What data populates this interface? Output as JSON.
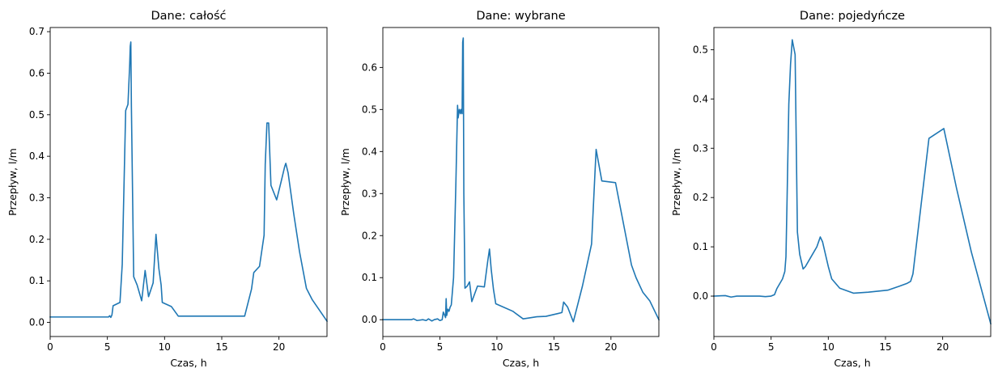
{
  "chart_data": [
    {
      "type": "line",
      "title": "Dane: całość",
      "xlabel": "Czas, h",
      "ylabel": "Przepływ, l/m",
      "xlim": [
        0,
        24.2
      ],
      "ylim": [
        -0.034,
        0.71
      ],
      "xticks": [
        0,
        5,
        10,
        15,
        20
      ],
      "xtick_labels": [
        "0",
        "5",
        "10",
        "15",
        "20"
      ],
      "yticks": [
        0.0,
        0.1,
        0.2,
        0.3,
        0.4,
        0.5,
        0.6,
        0.7
      ],
      "ytick_labels": [
        "0.0",
        "0.1",
        "0.2",
        "0.3",
        "0.4",
        "0.5",
        "0.6",
        "0.7"
      ],
      "color": "#1f77b4",
      "series": [
        {
          "name": "całość",
          "x": [
            0,
            5.1,
            5.2,
            5.3,
            5.4,
            5.5,
            6.1,
            6.3,
            6.6,
            6.8,
            6.95,
            7.0,
            7.05,
            7.1,
            7.3,
            7.6,
            8.0,
            8.3,
            8.6,
            9.0,
            9.25,
            9.5,
            9.7,
            9.8,
            10.6,
            11.2,
            17.0,
            17.6,
            17.8,
            18.3,
            18.7,
            18.8,
            18.95,
            19.1,
            19.3,
            19.8,
            20.2,
            20.5,
            20.6,
            20.8,
            21.3,
            21.8,
            22.4,
            22.9,
            23.4,
            24.2
          ],
          "y": [
            0.013,
            0.013,
            0.016,
            0.012,
            0.018,
            0.04,
            0.048,
            0.14,
            0.51,
            0.525,
            0.62,
            0.665,
            0.675,
            0.52,
            0.11,
            0.09,
            0.052,
            0.125,
            0.062,
            0.095,
            0.212,
            0.13,
            0.09,
            0.048,
            0.038,
            0.015,
            0.015,
            0.08,
            0.12,
            0.135,
            0.21,
            0.38,
            0.48,
            0.48,
            0.33,
            0.295,
            0.34,
            0.375,
            0.383,
            0.36,
            0.26,
            0.17,
            0.082,
            0.055,
            0.035,
            0.003
          ]
        }
      ]
    },
    {
      "type": "line",
      "title": "Dane: wybrane",
      "xlabel": "Czas, h",
      "ylabel": "Przepływ, l/m",
      "xlim": [
        0,
        24.2
      ],
      "ylim": [
        -0.04,
        0.695
      ],
      "xticks": [
        0,
        5,
        10,
        15,
        20
      ],
      "xtick_labels": [
        "0",
        "5",
        "10",
        "15",
        "20"
      ],
      "yticks": [
        0.0,
        0.1,
        0.2,
        0.3,
        0.4,
        0.5,
        0.6
      ],
      "ytick_labels": [
        "0.0",
        "0.1",
        "0.2",
        "0.3",
        "0.4",
        "0.5",
        "0.6"
      ],
      "color": "#1f77b4",
      "series": [
        {
          "name": "wybrane",
          "x": [
            0,
            2.5,
            2.7,
            3.0,
            3.5,
            3.8,
            4.0,
            4.3,
            4.5,
            4.8,
            5.0,
            5.2,
            5.3,
            5.5,
            5.55,
            5.6,
            5.7,
            5.8,
            5.9,
            6.0,
            6.2,
            6.4,
            6.55,
            6.6,
            6.7,
            6.8,
            6.85,
            6.95,
            7.0,
            7.05,
            7.1,
            7.2,
            7.4,
            7.6,
            7.8,
            8.3,
            8.9,
            9.2,
            9.35,
            9.5,
            9.7,
            9.9,
            11.4,
            12.3,
            13.5,
            14.3,
            15.4,
            15.7,
            15.85,
            16.2,
            16.7,
            17.5,
            18.3,
            18.6,
            18.7,
            19.2,
            20.4,
            21.3,
            21.8,
            22.2,
            22.8,
            23.4,
            24.2
          ],
          "y": [
            0.0,
            0.0,
            0.002,
            -0.002,
            0.0,
            -0.002,
            0.002,
            -0.003,
            0.0,
            0.002,
            -0.002,
            0.0,
            0.018,
            0.005,
            0.05,
            0.01,
            0.025,
            0.02,
            0.03,
            0.035,
            0.1,
            0.32,
            0.51,
            0.48,
            0.5,
            0.49,
            0.5,
            0.49,
            0.66,
            0.67,
            0.3,
            0.075,
            0.08,
            0.09,
            0.043,
            0.08,
            0.078,
            0.14,
            0.168,
            0.12,
            0.072,
            0.038,
            0.02,
            0.002,
            0.007,
            0.008,
            0.015,
            0.017,
            0.042,
            0.03,
            -0.005,
            0.08,
            0.18,
            0.35,
            0.405,
            0.33,
            0.326,
            0.2,
            0.13,
            0.1,
            0.065,
            0.045,
            0.0
          ]
        }
      ]
    },
    {
      "type": "line",
      "title": "Dane: pojedyńcze",
      "xlabel": "Czas, h",
      "ylabel": "Przepływ, l/m",
      "xlim": [
        0,
        24.2
      ],
      "ylim": [
        -0.082,
        0.545
      ],
      "xticks": [
        0,
        5,
        10,
        15,
        20
      ],
      "xtick_labels": [
        "0",
        "5",
        "10",
        "15",
        "20"
      ],
      "yticks": [
        0.0,
        0.1,
        0.2,
        0.3,
        0.4,
        0.5
      ],
      "ytick_labels": [
        "0.0",
        "0.1",
        "0.2",
        "0.3",
        "0.4",
        "0.5"
      ],
      "color": "#1f77b4",
      "series": [
        {
          "name": "pojedyńcze",
          "x": [
            0,
            1.0,
            1.5,
            2.0,
            3.0,
            4.0,
            4.5,
            5.0,
            5.3,
            5.5,
            6.0,
            6.2,
            6.3,
            6.4,
            6.55,
            6.7,
            6.85,
            7.1,
            7.3,
            7.5,
            7.8,
            8.0,
            8.5,
            9.0,
            9.3,
            9.5,
            10.0,
            10.3,
            11.0,
            12.2,
            13.5,
            15.2,
            16.2,
            16.9,
            17.2,
            17.4,
            18.8,
            20.1,
            21.2,
            22.5,
            24.2
          ],
          "y": [
            0.0,
            0.001,
            -0.002,
            0.0,
            0.0,
            0.0,
            -0.001,
            0.0,
            0.003,
            0.015,
            0.035,
            0.05,
            0.08,
            0.2,
            0.39,
            0.47,
            0.52,
            0.49,
            0.13,
            0.085,
            0.055,
            0.06,
            0.08,
            0.1,
            0.12,
            0.11,
            0.06,
            0.035,
            0.016,
            0.006,
            0.008,
            0.012,
            0.02,
            0.026,
            0.03,
            0.045,
            0.32,
            0.34,
            0.22,
            0.09,
            -0.056
          ]
        }
      ]
    }
  ]
}
